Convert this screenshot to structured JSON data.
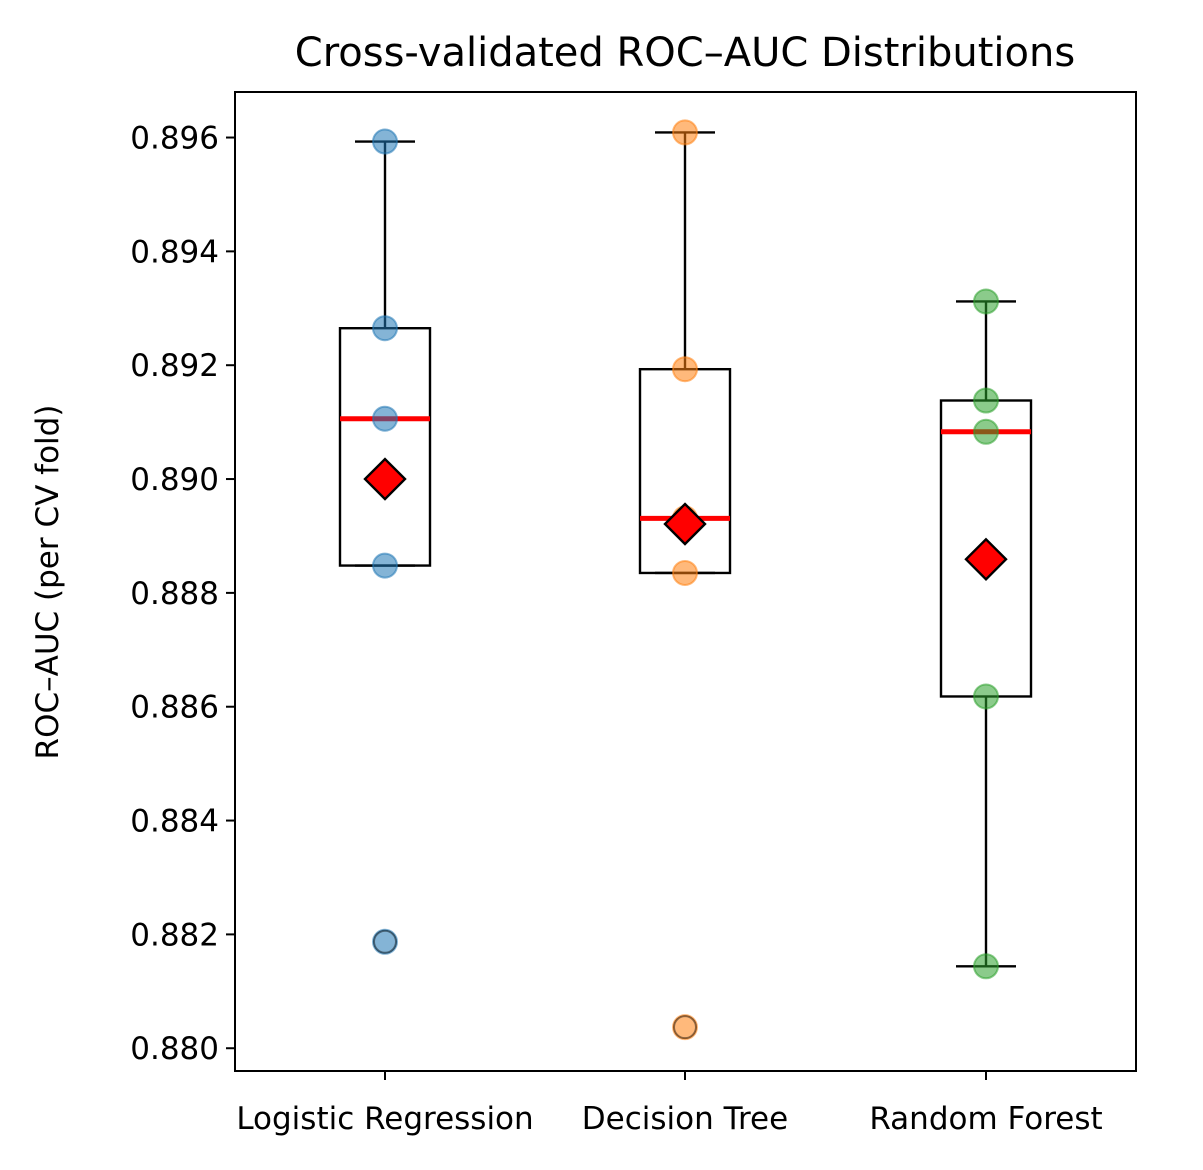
{
  "chart_data": {
    "type": "box",
    "title": "Cross-validated ROC–AUC Distributions",
    "xlabel": "",
    "ylabel": "ROC–AUC (per CV fold)",
    "ylim": [
      0.8796,
      0.8968
    ],
    "yticks": [
      0.88,
      0.882,
      0.884,
      0.886,
      0.888,
      0.89,
      0.892,
      0.894,
      0.896
    ],
    "ytick_labels": [
      "0.880",
      "0.882",
      "0.884",
      "0.886",
      "0.888",
      "0.890",
      "0.892",
      "0.894",
      "0.896"
    ],
    "categories": [
      "Logistic Regression",
      "Decision Tree",
      "Random Forest"
    ],
    "grid": false,
    "series": [
      {
        "color": "#1f77b4",
        "points": [
          0.89593,
          0.89265,
          0.89106,
          0.88848,
          0.88187
        ],
        "q1": 0.88848,
        "median": 0.89106,
        "q3": 0.89265,
        "whisker_low": 0.88848,
        "whisker_high": 0.89593,
        "mean": 0.89,
        "outliers": [
          0.88187
        ]
      },
      {
        "color": "#ff7f0e",
        "points": [
          0.89609,
          0.89193,
          0.88931,
          0.88835,
          0.88037
        ],
        "q1": 0.88835,
        "median": 0.88931,
        "q3": 0.89193,
        "whisker_low": 0.88835,
        "whisker_high": 0.89609,
        "mean": 0.88921,
        "outliers": [
          0.88037
        ]
      },
      {
        "color": "#2ca02c",
        "points": [
          0.89312,
          0.89138,
          0.89083,
          0.88618,
          0.88144
        ],
        "q1": 0.88618,
        "median": 0.89083,
        "q3": 0.89138,
        "whisker_low": 0.88144,
        "whisker_high": 0.89312,
        "mean": 0.88859,
        "outliers": []
      }
    ],
    "median_color": "#ff0000",
    "mean_marker_color": "#ff0000"
  }
}
